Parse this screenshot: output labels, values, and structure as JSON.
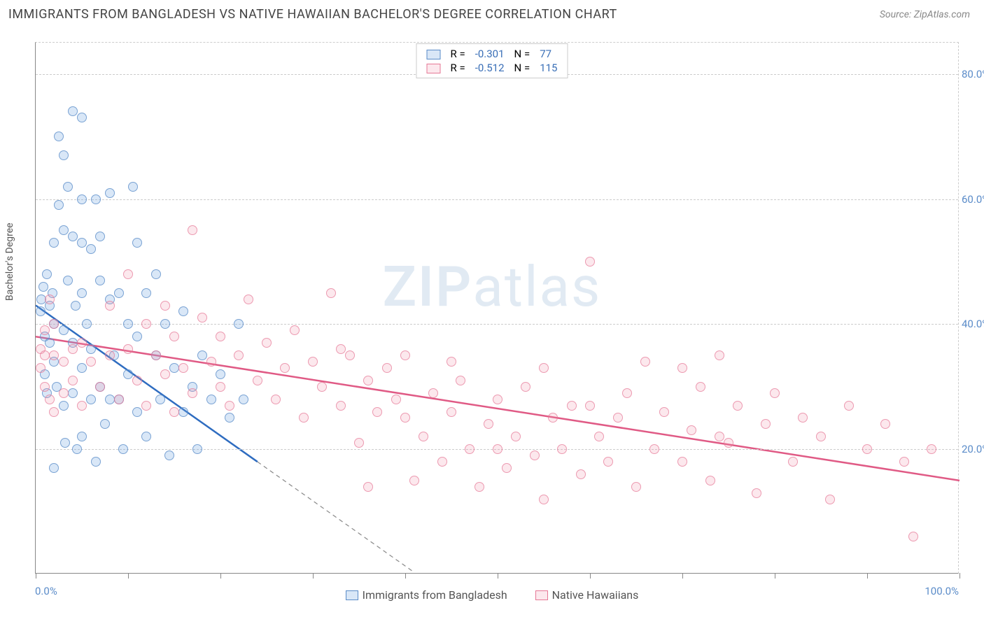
{
  "title": "IMMIGRANTS FROM BANGLADESH VS NATIVE HAWAIIAN BACHELOR'S DEGREE CORRELATION CHART",
  "source_label": "Source: ZipAtlas.com",
  "watermark_a": "ZIP",
  "watermark_b": "atlas",
  "chart": {
    "type": "scatter",
    "y_axis_label": "Bachelor's Degree",
    "x_min": 0,
    "x_max": 100,
    "y_min": 0,
    "y_max": 85,
    "x_ticks": [
      0,
      10,
      20,
      30,
      40,
      50,
      60,
      70,
      80,
      90,
      100
    ],
    "y_gridlines": [
      20,
      40,
      60,
      80
    ],
    "y_tick_labels": [
      "20.0%",
      "40.0%",
      "60.0%",
      "80.0%"
    ],
    "x_min_label": "0.0%",
    "x_max_label": "100.0%",
    "background_color": "#ffffff",
    "grid_color": "#cccccc",
    "axis_color": "#888888",
    "tick_label_color": "#5b8cc9",
    "point_radius": 7,
    "series": [
      {
        "name": "Immigrants from Bangladesh",
        "R": "-0.301",
        "N": "77",
        "fill": "rgba(120,170,225,0.28)",
        "stroke": "#5a8cc8",
        "line_color": "#2e6cc0",
        "regression": {
          "x1": 0,
          "y1": 43,
          "x2": 24,
          "y2": 18,
          "extrapolate_to_x": 41
        },
        "points": [
          [
            0.5,
            42
          ],
          [
            0.6,
            44
          ],
          [
            0.8,
            46
          ],
          [
            1,
            38
          ],
          [
            1,
            32
          ],
          [
            1.2,
            29
          ],
          [
            1.2,
            48
          ],
          [
            1.5,
            43
          ],
          [
            1.5,
            37
          ],
          [
            1.8,
            45
          ],
          [
            2,
            53
          ],
          [
            2,
            40
          ],
          [
            2,
            34
          ],
          [
            2,
            17
          ],
          [
            2.3,
            30
          ],
          [
            2.5,
            59
          ],
          [
            2.5,
            70
          ],
          [
            3,
            67
          ],
          [
            3,
            55
          ],
          [
            3,
            39
          ],
          [
            3,
            27
          ],
          [
            3.2,
            21
          ],
          [
            3.5,
            62
          ],
          [
            3.5,
            47
          ],
          [
            4,
            74
          ],
          [
            4,
            54
          ],
          [
            4,
            37
          ],
          [
            4,
            29
          ],
          [
            4.3,
            43
          ],
          [
            4.5,
            20
          ],
          [
            5,
            73
          ],
          [
            5,
            60
          ],
          [
            5,
            53
          ],
          [
            5,
            45
          ],
          [
            5,
            33
          ],
          [
            5,
            22
          ],
          [
            5.5,
            40
          ],
          [
            6,
            52
          ],
          [
            6,
            36
          ],
          [
            6,
            28
          ],
          [
            6.5,
            18
          ],
          [
            7,
            47
          ],
          [
            7,
            30
          ],
          [
            7.5,
            24
          ],
          [
            8,
            61
          ],
          [
            8,
            44
          ],
          [
            8.5,
            35
          ],
          [
            9,
            28
          ],
          [
            9.5,
            20
          ],
          [
            10,
            40
          ],
          [
            10,
            32
          ],
          [
            10.5,
            62
          ],
          [
            11,
            53
          ],
          [
            11,
            26
          ],
          [
            12,
            45
          ],
          [
            12,
            22
          ],
          [
            13,
            35
          ],
          [
            13.5,
            28
          ],
          [
            14,
            40
          ],
          [
            14.5,
            19
          ],
          [
            15,
            33
          ],
          [
            16,
            26
          ],
          [
            16,
            42
          ],
          [
            17,
            30
          ],
          [
            17.5,
            20
          ],
          [
            18,
            35
          ],
          [
            19,
            28
          ],
          [
            20,
            32
          ],
          [
            21,
            25
          ],
          [
            22,
            40
          ],
          [
            22.5,
            28
          ],
          [
            7,
            54
          ],
          [
            8,
            28
          ],
          [
            9,
            45
          ],
          [
            11,
            38
          ],
          [
            13,
            48
          ],
          [
            6.5,
            60
          ]
        ]
      },
      {
        "name": "Native Hawaiians",
        "R": "-0.512",
        "N": "115",
        "fill": "rgba(240,150,175,0.22)",
        "stroke": "#e67896",
        "line_color": "#e05a85",
        "regression": {
          "x1": 0,
          "y1": 38,
          "x2": 100,
          "y2": 15
        },
        "points": [
          [
            0.5,
            33
          ],
          [
            0.5,
            36
          ],
          [
            1,
            35
          ],
          [
            1,
            39
          ],
          [
            1,
            30
          ],
          [
            1.5,
            44
          ],
          [
            1.5,
            28
          ],
          [
            2,
            35
          ],
          [
            2,
            26
          ],
          [
            2,
            40
          ],
          [
            3,
            34
          ],
          [
            3,
            29
          ],
          [
            4,
            36
          ],
          [
            4,
            31
          ],
          [
            5,
            37
          ],
          [
            5,
            27
          ],
          [
            6,
            34
          ],
          [
            7,
            30
          ],
          [
            8,
            43
          ],
          [
            8,
            35
          ],
          [
            9,
            28
          ],
          [
            10,
            48
          ],
          [
            10,
            36
          ],
          [
            11,
            31
          ],
          [
            12,
            40
          ],
          [
            12,
            27
          ],
          [
            13,
            35
          ],
          [
            14,
            43
          ],
          [
            14,
            32
          ],
          [
            15,
            38
          ],
          [
            15,
            26
          ],
          [
            16,
            33
          ],
          [
            17,
            55
          ],
          [
            17,
            29
          ],
          [
            18,
            41
          ],
          [
            19,
            34
          ],
          [
            20,
            30
          ],
          [
            20,
            38
          ],
          [
            21,
            27
          ],
          [
            22,
            35
          ],
          [
            23,
            44
          ],
          [
            24,
            31
          ],
          [
            25,
            37
          ],
          [
            26,
            28
          ],
          [
            27,
            33
          ],
          [
            28,
            39
          ],
          [
            29,
            25
          ],
          [
            30,
            34
          ],
          [
            31,
            30
          ],
          [
            32,
            45
          ],
          [
            33,
            27
          ],
          [
            34,
            35
          ],
          [
            35,
            21
          ],
          [
            36,
            31
          ],
          [
            37,
            26
          ],
          [
            38,
            33
          ],
          [
            39,
            28
          ],
          [
            40,
            35
          ],
          [
            41,
            15
          ],
          [
            42,
            22
          ],
          [
            43,
            29
          ],
          [
            44,
            18
          ],
          [
            45,
            26
          ],
          [
            46,
            31
          ],
          [
            47,
            20
          ],
          [
            48,
            14
          ],
          [
            49,
            24
          ],
          [
            50,
            28
          ],
          [
            51,
            17
          ],
          [
            52,
            22
          ],
          [
            53,
            30
          ],
          [
            54,
            19
          ],
          [
            55,
            12
          ],
          [
            56,
            25
          ],
          [
            57,
            20
          ],
          [
            58,
            27
          ],
          [
            59,
            16
          ],
          [
            60,
            50
          ],
          [
            61,
            22
          ],
          [
            62,
            18
          ],
          [
            63,
            25
          ],
          [
            64,
            29
          ],
          [
            65,
            14
          ],
          [
            66,
            34
          ],
          [
            67,
            20
          ],
          [
            68,
            26
          ],
          [
            70,
            18
          ],
          [
            71,
            23
          ],
          [
            72,
            30
          ],
          [
            73,
            15
          ],
          [
            74,
            35
          ],
          [
            75,
            21
          ],
          [
            76,
            27
          ],
          [
            78,
            13
          ],
          [
            79,
            24
          ],
          [
            80,
            29
          ],
          [
            82,
            18
          ],
          [
            83,
            25
          ],
          [
            85,
            22
          ],
          [
            86,
            12
          ],
          [
            88,
            27
          ],
          [
            90,
            20
          ],
          [
            92,
            24
          ],
          [
            94,
            18
          ],
          [
            95,
            6
          ],
          [
            97,
            20
          ],
          [
            70,
            33
          ],
          [
            74,
            22
          ],
          [
            60,
            27
          ],
          [
            55,
            33
          ],
          [
            50,
            20
          ],
          [
            45,
            34
          ],
          [
            40,
            25
          ],
          [
            36,
            14
          ],
          [
            33,
            36
          ]
        ]
      }
    ]
  }
}
